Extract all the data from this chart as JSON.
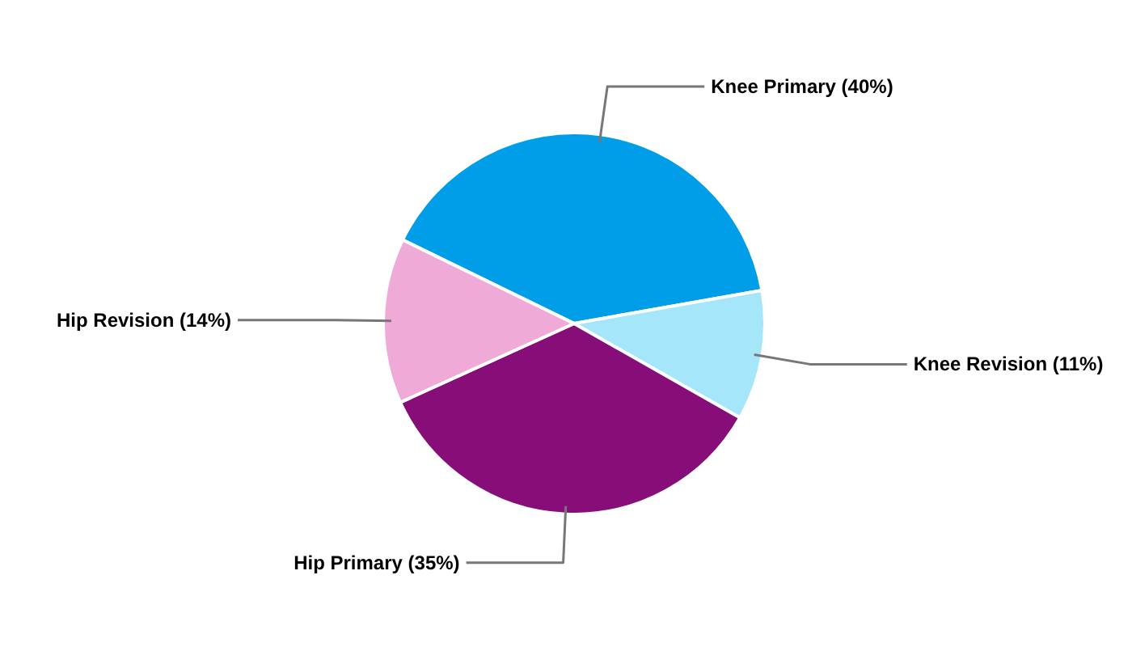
{
  "chart_data": {
    "type": "pie",
    "categories": [
      "Knee Primary",
      "Knee Revision",
      "Hip Primary",
      "Hip Revision"
    ],
    "values": [
      40,
      11,
      35,
      14
    ],
    "value_labels": [
      "(40%)",
      "(11%)",
      "(35%)",
      "(14%)"
    ],
    "colors": [
      "#009ee8",
      "#a6e6fb",
      "#870e78",
      "#f0aad8"
    ]
  }
}
